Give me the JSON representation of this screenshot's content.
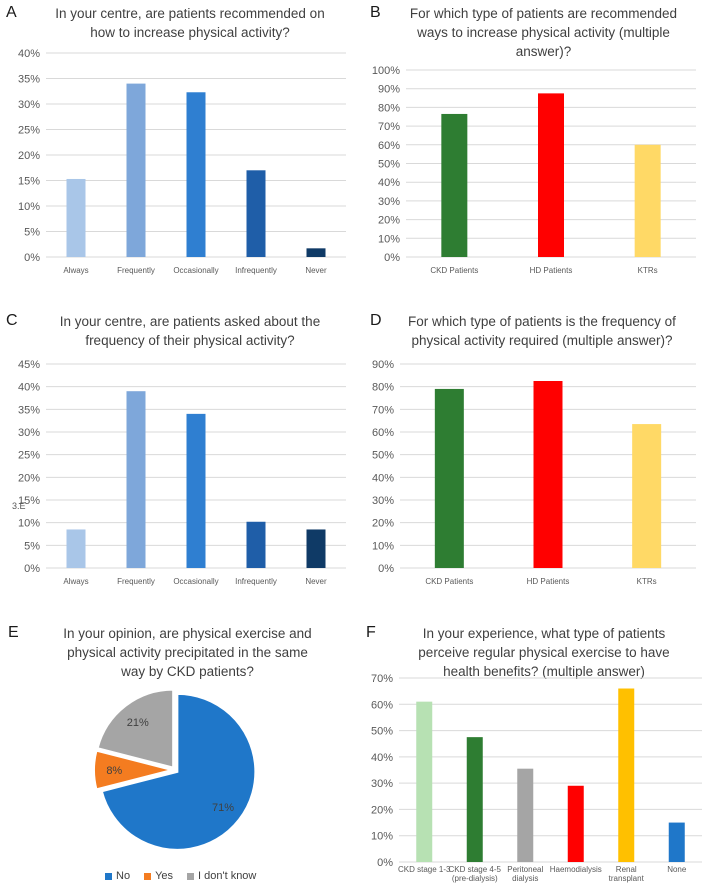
{
  "chart_data": [
    {
      "id": "A",
      "panel_label": "A",
      "type": "bar",
      "title": "In your centre, are patients recommended on how to increase physical activity?",
      "categories": [
        "Always",
        "Frequently",
        "Occasionally",
        "Infrequently",
        "Never"
      ],
      "values": [
        15.3,
        34,
        32.3,
        17,
        1.7
      ],
      "colors": [
        "#a9c6e8",
        "#7ea7da",
        "#2f7fd1",
        "#1f5ea8",
        "#0f3a66"
      ],
      "ylim": [
        0,
        40
      ],
      "yticks": [
        0,
        5,
        10,
        15,
        20,
        25,
        30,
        35,
        40
      ],
      "unit": "%"
    },
    {
      "id": "B",
      "panel_label": "B",
      "type": "bar",
      "title": "For which type of patients are recommended ways to increase physical activity (multiple answer)?",
      "categories": [
        "CKD Patients",
        "HD Patients",
        "KTRs"
      ],
      "values": [
        76.5,
        87.5,
        60
      ],
      "colors": [
        "#2e7d32",
        "#ff0000",
        "#ffd966"
      ],
      "ylim": [
        0,
        100
      ],
      "yticks": [
        0,
        10,
        20,
        30,
        40,
        50,
        60,
        70,
        80,
        90,
        100
      ],
      "unit": "%"
    },
    {
      "id": "C",
      "panel_label": "C",
      "type": "bar",
      "title": "In your centre, are patients asked about the frequency of their physical activity?",
      "categories": [
        "Always",
        "Frequently",
        "Occasionally",
        "Infrequently",
        "Never"
      ],
      "values": [
        8.5,
        39,
        34,
        10.2,
        8.5
      ],
      "colors": [
        "#a9c6e8",
        "#7ea7da",
        "#2f7fd1",
        "#1f5ea8",
        "#0f3a66"
      ],
      "ylim": [
        0,
        45
      ],
      "yticks": [
        0,
        5,
        10,
        15,
        20,
        25,
        30,
        35,
        40,
        45
      ],
      "unit": "%",
      "stray_text": "3.E"
    },
    {
      "id": "D",
      "panel_label": "D",
      "type": "bar",
      "title": "For which type of patients is the frequency of physical activity required (multiple answer)?",
      "categories": [
        "CKD Patients",
        "HD Patients",
        "KTRs"
      ],
      "values": [
        79,
        82.5,
        63.5
      ],
      "colors": [
        "#2e7d32",
        "#ff0000",
        "#ffd966"
      ],
      "ylim": [
        0,
        90
      ],
      "yticks": [
        0,
        10,
        20,
        30,
        40,
        50,
        60,
        70,
        80,
        90
      ],
      "unit": "%"
    },
    {
      "id": "E",
      "panel_label": "E",
      "type": "pie",
      "title": "In your opinion, are physical exercise and physical activity precipitated in the same way by CKD patients?",
      "labels": [
        "No",
        "Yes",
        "I don't know"
      ],
      "values": [
        71,
        8,
        21
      ],
      "data_labels": [
        "71%",
        "8%",
        "21%"
      ],
      "colors": [
        "#1f77c9",
        "#f47c20",
        "#a5a5a5"
      ],
      "legend_position": "bottom"
    },
    {
      "id": "F",
      "panel_label": "F",
      "type": "bar",
      "title": "In your experience, what type of patients perceive regular physical exercise to have health benefits? (multiple answer)",
      "categories": [
        "CKD stage 1-3",
        "CKD stage 4-5 (pre-dialysis)",
        "Peritoneal dialysis",
        "Haemodialysis",
        "Renal transplant",
        "None"
      ],
      "category_lines": [
        [
          "CKD stage 1-3"
        ],
        [
          "CKD stage 4-5",
          "(pre-dialysis)"
        ],
        [
          "Peritoneal",
          "dialysis"
        ],
        [
          "Haemodialysis"
        ],
        [
          "Renal",
          "transplant"
        ],
        [
          "None"
        ]
      ],
      "values": [
        61,
        47.5,
        35.5,
        29,
        66,
        15
      ],
      "colors": [
        "#b7e1b3",
        "#2e7d32",
        "#a5a5a5",
        "#ff0000",
        "#ffc000",
        "#1f77c9"
      ],
      "ylim": [
        0,
        70
      ],
      "yticks": [
        0,
        10,
        20,
        30,
        40,
        50,
        60,
        70
      ],
      "unit": "%"
    }
  ]
}
